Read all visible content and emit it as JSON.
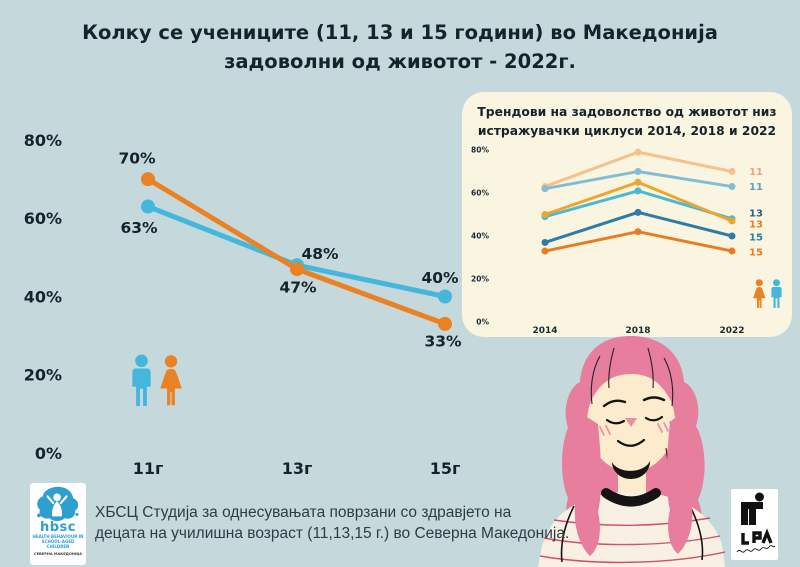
{
  "page": {
    "background": "#c5d8db",
    "text_dark": "#15242c"
  },
  "title": {
    "line1": "Колку се учениците (11, 13 и 15 години) во Македонија",
    "line2": "задоволни од животот - 2022г."
  },
  "colors": {
    "boy_blue": "#45b7dc",
    "girl_orange": "#ea8122"
  },
  "inset": {
    "bg": "#f9f5e1",
    "title_line1": "Трендови на задоволство од животот низ",
    "title_line2": "истражувачки циклуси 2014, 2018 и 2022"
  },
  "caption": {
    "line1": "ХБСЦ Студија за однесувањата поврзани со здравјето на",
    "line2": "децата на училишна возраст (11,13,15 г.) во Северна Македонија."
  },
  "hbsc_logo": {
    "name": "hbsc",
    "sub1": "HEALTH BEHAVIOUR IN",
    "sub2": "SCHOOL-AGED CHILDREN",
    "sub3": "СЕВЕРНА МАКЕДОНИЈА"
  },
  "chart_data": [
    {
      "type": "line",
      "title": "Колку се учениците (11, 13 и 15 години) во Македонија задоволни од животот - 2022г.",
      "categories": [
        "11г",
        "13г",
        "15г"
      ],
      "y_ticks": [
        "80%",
        "60%",
        "40%",
        "20%",
        "0%"
      ],
      "y_tick_values": [
        80,
        60,
        40,
        20,
        0
      ],
      "ylim": [
        0,
        84
      ],
      "grid": false,
      "legend": "pictogram of blue boy and orange girl",
      "series": [
        {
          "name": "момчиња",
          "color": "#45b7dc",
          "values": [
            63,
            48,
            40
          ],
          "data_labels": [
            "63%",
            "48%",
            "40%"
          ],
          "label_offsets": [
            [
              -9,
              21
            ],
            [
              23,
              -12
            ],
            [
              -5,
              -19
            ]
          ]
        },
        {
          "name": "девојчиња",
          "color": "#ea8122",
          "values": [
            70,
            47,
            33
          ],
          "data_labels": [
            "70%",
            "47%",
            "33%"
          ],
          "label_offsets": [
            [
              -11,
              -21
            ],
            [
              1,
              18
            ],
            [
              -2,
              17
            ]
          ]
        }
      ]
    },
    {
      "type": "line",
      "title": "Трендови на задоволство од животот низ истражувачки циклуси 2014, 2018 и 2022",
      "categories": [
        "2014",
        "2018",
        "2022"
      ],
      "y_ticks": [
        "80%",
        "60%",
        "40%",
        "20%",
        "0%"
      ],
      "y_tick_values": [
        80,
        60,
        40,
        20,
        0
      ],
      "ylim": [
        0,
        84
      ],
      "grid": false,
      "legend": "right-edge age labels; pictogram of orange girl and blue boy",
      "series": [
        {
          "name": "11",
          "color": "#f5c28e",
          "label_color": "#f2a27f",
          "values": [
            63,
            79,
            70
          ],
          "name_dy": 0
        },
        {
          "name": "11",
          "color": "#85bcd5",
          "label_color": "#5f9fc0",
          "values": [
            62,
            70,
            63
          ],
          "name_dy": 0
        },
        {
          "name": "13",
          "color": "#4cb9d2",
          "label_color": "#26628c",
          "values": [
            49,
            61,
            48
          ],
          "name_dy": -6
        },
        {
          "name": "13",
          "color": "#eda52f",
          "label_color": "#e87d26",
          "values": [
            50,
            65,
            47
          ],
          "name_dy": 3
        },
        {
          "name": "15",
          "color": "#2f7ca6",
          "label_color": "#2f7ca6",
          "values": [
            37,
            51,
            40
          ],
          "name_dy": 1
        },
        {
          "name": "15",
          "color": "#e87c25",
          "label_color": "#e87c25",
          "values": [
            33,
            42,
            33
          ],
          "name_dy": 1
        }
      ]
    }
  ]
}
